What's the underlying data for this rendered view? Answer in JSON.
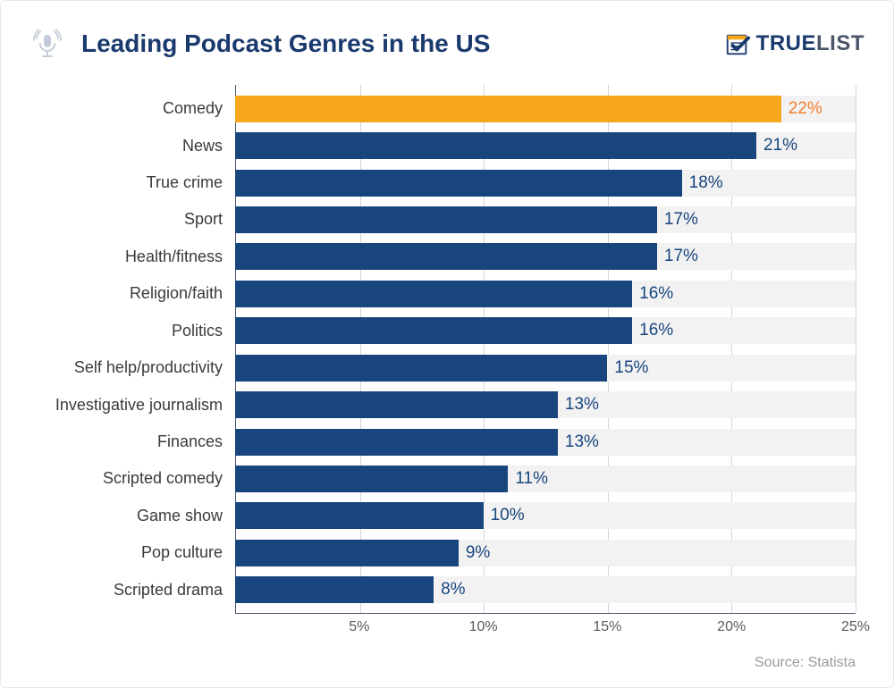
{
  "header": {
    "title": "Leading Podcast Genres in the US",
    "logo_true": "TRUE",
    "logo_list": "LIST"
  },
  "source": "Source: Statista",
  "chart": {
    "type": "bar-horizontal",
    "x_max": 25,
    "x_ticks": [
      {
        "value": 5,
        "label": "5%"
      },
      {
        "value": 10,
        "label": "10%"
      },
      {
        "value": 15,
        "label": "15%"
      },
      {
        "value": 20,
        "label": "20%"
      },
      {
        "value": 25,
        "label": "25%"
      }
    ],
    "track_color": "#f2f2f2",
    "default_bar_color": "#18457e",
    "highlight_bar_color": "#f6a71c",
    "default_value_color": "#18457e",
    "highlight_value_color": "#f47c2a",
    "label_color": "#3a3a3a",
    "grid_color": "#d5d5d5",
    "axis_color": "#4a5568",
    "bars": [
      {
        "label": "Comedy",
        "value": 22,
        "display": "22%",
        "highlight": true
      },
      {
        "label": "News",
        "value": 21,
        "display": "21%",
        "highlight": false
      },
      {
        "label": "True crime",
        "value": 18,
        "display": "18%",
        "highlight": false
      },
      {
        "label": "Sport",
        "value": 17,
        "display": "17%",
        "highlight": false
      },
      {
        "label": "Health/fitness",
        "value": 17,
        "display": "17%",
        "highlight": false
      },
      {
        "label": "Religion/faith",
        "value": 16,
        "display": "16%",
        "highlight": false
      },
      {
        "label": "Politics",
        "value": 16,
        "display": "16%",
        "highlight": false
      },
      {
        "label": "Self help/productivity",
        "value": 15,
        "display": "15%",
        "highlight": false
      },
      {
        "label": "Investigative journalism",
        "value": 13,
        "display": "13%",
        "highlight": false
      },
      {
        "label": "Finances",
        "value": 13,
        "display": "13%",
        "highlight": false
      },
      {
        "label": "Scripted comedy",
        "value": 11,
        "display": "11%",
        "highlight": false
      },
      {
        "label": "Game show",
        "value": 10,
        "display": "10%",
        "highlight": false
      },
      {
        "label": "Pop culture",
        "value": 9,
        "display": "9%",
        "highlight": false
      },
      {
        "label": "Scripted drama",
        "value": 8,
        "display": "8%",
        "highlight": false
      }
    ]
  }
}
